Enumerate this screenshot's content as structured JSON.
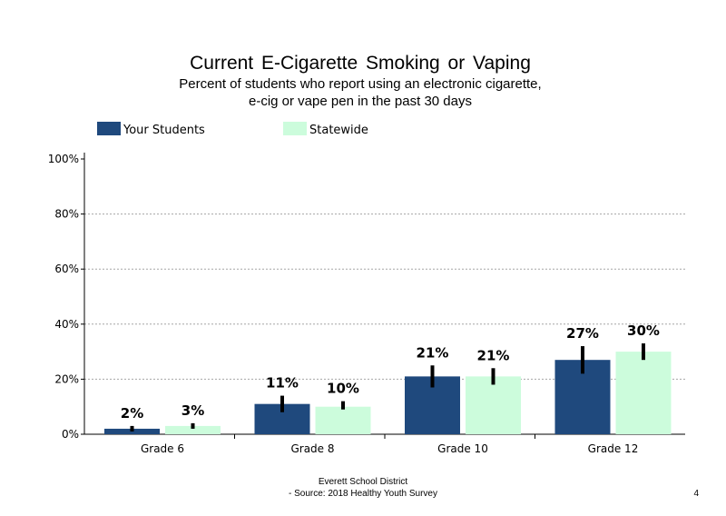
{
  "header": {
    "title": "Current  E-Cigarette  Smoking  or Vaping",
    "subtitle_line1": "Percent of students  who report  using  an electronic  cigarette,",
    "subtitle_line2": "e-cig or vape pen  in the past 30 days"
  },
  "footer": {
    "line1": "Everett  School District",
    "line2": "- Source: 2018 Healthy  Youth Survey",
    "page_number": "4"
  },
  "colors": {
    "your_students": "#1f497d",
    "statewide": "#ccfcdc",
    "error_bar": "#000000",
    "gridline": "#a6a6a6"
  },
  "chart_data": {
    "type": "bar",
    "categories": [
      "Grade 6",
      "Grade 8",
      "Grade 10",
      "Grade 12"
    ],
    "series": [
      {
        "name": "Your Students",
        "values": [
          2,
          11,
          21,
          27
        ],
        "labels": [
          "2%",
          "11%",
          "21%",
          "27%"
        ],
        "error_low": [
          1,
          8,
          17,
          22
        ],
        "error_high": [
          3,
          14,
          25,
          32
        ]
      },
      {
        "name": "Statewide",
        "values": [
          3,
          10,
          21,
          30
        ],
        "labels": [
          "3%",
          "10%",
          "21%",
          "30%"
        ],
        "error_low": [
          2,
          9,
          18,
          27
        ],
        "error_high": [
          4,
          12,
          24,
          33
        ]
      }
    ],
    "yticks": [
      "0%",
      "20%",
      "40%",
      "60%",
      "80%",
      "100%"
    ],
    "ylim": [
      0,
      100
    ],
    "legend_position": "top-left",
    "grid": true
  }
}
